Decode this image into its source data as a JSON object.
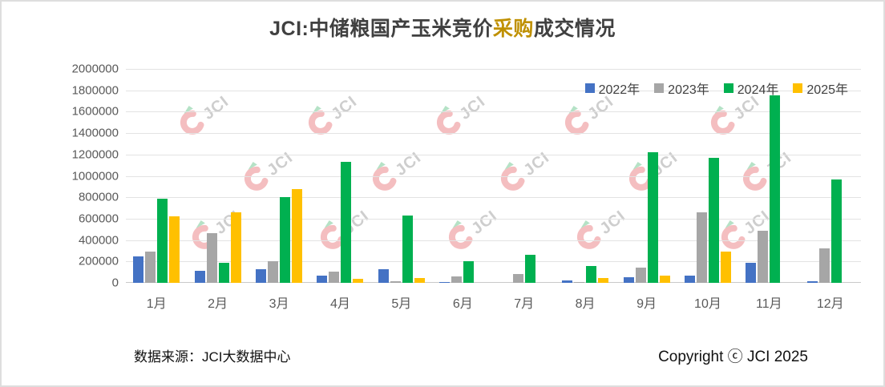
{
  "title": {
    "prefix": "JCI:中储粮国产玉米竞价",
    "highlight": "采购",
    "suffix": "成交情况",
    "highlight_color": "#bf9000"
  },
  "watermark_text": "JCI",
  "footer": {
    "source": "数据来源：JCI大数据中心",
    "copyright": "Copyright ⓒ JCI 2025"
  },
  "chart_data": {
    "type": "bar",
    "title": "JCI:中储粮国产玉米竞价采购成交情况",
    "categories": [
      "1月",
      "2月",
      "3月",
      "4月",
      "5月",
      "6月",
      "7月",
      "8月",
      "9月",
      "10月",
      "11月",
      "12月"
    ],
    "series": [
      {
        "name": "2022年",
        "color": "#4472C4",
        "values": [
          250000,
          110000,
          130000,
          70000,
          125000,
          10000,
          0,
          20000,
          50000,
          70000,
          190000,
          15000
        ]
      },
      {
        "name": "2023年",
        "color": "#A6A6A6",
        "values": [
          290000,
          465000,
          200000,
          105000,
          15000,
          60000,
          85000,
          10000,
          140000,
          660000,
          490000,
          325000
        ]
      },
      {
        "name": "2024年",
        "color": "#00B050",
        "values": [
          790000,
          185000,
          805000,
          1130000,
          630000,
          200000,
          260000,
          160000,
          1220000,
          1170000,
          1750000,
          970000
        ]
      },
      {
        "name": "2025年",
        "color": "#FFC000",
        "values": [
          620000,
          660000,
          880000,
          40000,
          45000,
          0,
          0,
          45000,
          65000,
          295000,
          0,
          0
        ]
      }
    ],
    "ylim": [
      0,
      2000000
    ],
    "ytick_step": 200000,
    "yticks": [
      "2000000",
      "1800000",
      "1600000",
      "1400000",
      "1200000",
      "1000000",
      "800000",
      "600000",
      "400000",
      "200000",
      "0"
    ],
    "xlabel": "",
    "ylabel": "",
    "grid": true,
    "legend_position": "top-right"
  }
}
